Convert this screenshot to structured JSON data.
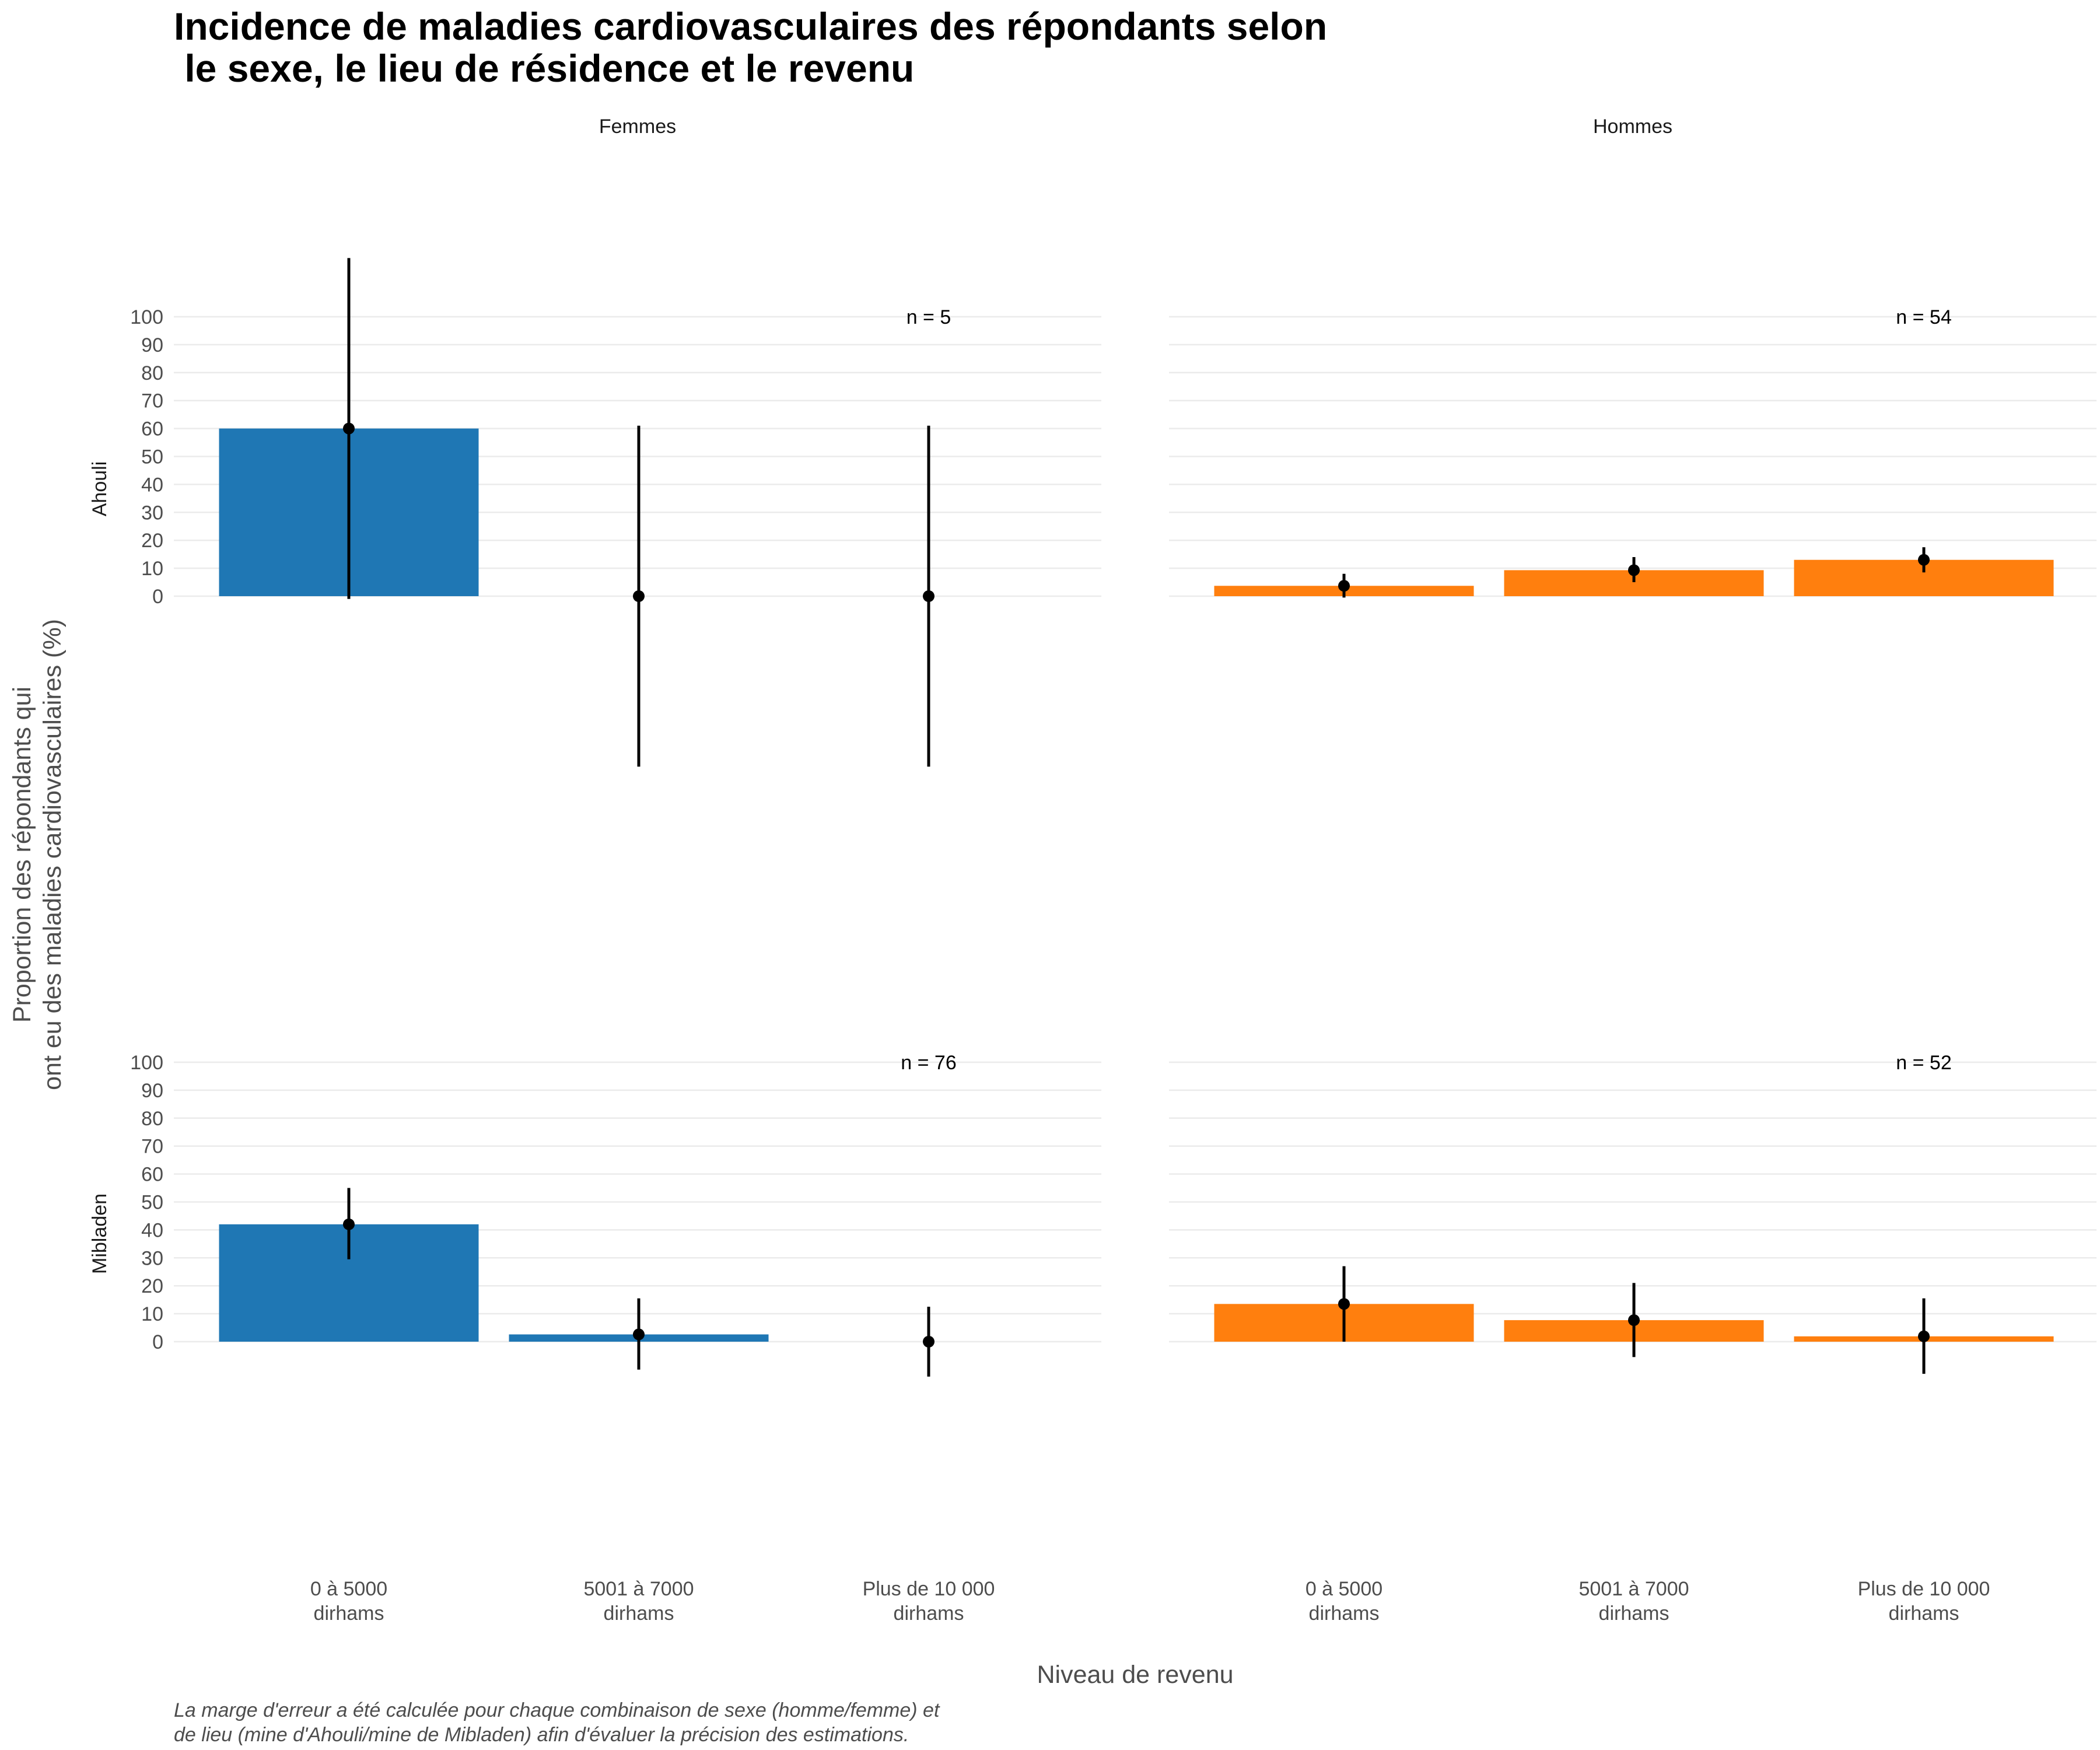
{
  "chart_data": {
    "type": "bar",
    "title": [
      "Incidence de maladies cardiovasculaires des répondants selon",
      " le sexe, le lieu de résidence et le revenu"
    ],
    "xlabel": "Niveau de revenu",
    "ylabel": [
      "Proportion des répondants qui",
      "ont eu des maladies cardiovasculaires (%)"
    ],
    "caption": [
      "La marge d'erreur a été calculée pour chaque combinaison de sexe (homme/femme) et",
      "de lieu (mine d'Ahouli/mine de Mibladen) afin d'évaluer la précision des estimations."
    ],
    "categories": [
      [
        "0 à 5000",
        "dirhams"
      ],
      [
        "5001 à 7000",
        "dirhams"
      ],
      [
        "Plus de 10 000",
        "dirhams"
      ]
    ],
    "yticks": [
      0,
      10,
      20,
      30,
      40,
      50,
      60,
      70,
      80,
      90,
      100
    ],
    "grid": true,
    "legend": "none",
    "facet_cols": [
      "Femmes",
      "Hommes"
    ],
    "facet_rows": [
      "Ahouli",
      "Mibladen"
    ],
    "colors": {
      "Femmes": "#1f77b4",
      "Hommes": "#ff7f0e"
    },
    "panels": [
      {
        "row": "Ahouli",
        "col": "Femmes",
        "n_label": "n = 5",
        "values": [
          60,
          0,
          0
        ],
        "ci_low": [
          -1,
          -61,
          -61
        ],
        "ci_high": [
          121,
          61,
          61
        ]
      },
      {
        "row": "Ahouli",
        "col": "Hommes",
        "n_label": "n = 54",
        "values": [
          3.7,
          9.3,
          13
        ],
        "ci_low": [
          -0.5,
          5,
          8.5
        ],
        "ci_high": [
          8,
          14,
          17.5
        ]
      },
      {
        "row": "Mibladen",
        "col": "Femmes",
        "n_label": "n = 76",
        "values": [
          42,
          2.6,
          0
        ],
        "ci_low": [
          29.5,
          -10,
          -12.5
        ],
        "ci_high": [
          55,
          15.5,
          12.5
        ]
      },
      {
        "row": "Mibladen",
        "col": "Hommes",
        "n_label": "n = 52",
        "values": [
          13.5,
          7.7,
          1.9
        ],
        "ci_low": [
          0,
          -5.5,
          -11.5
        ],
        "ci_high": [
          27,
          21,
          15.5
        ]
      }
    ]
  }
}
